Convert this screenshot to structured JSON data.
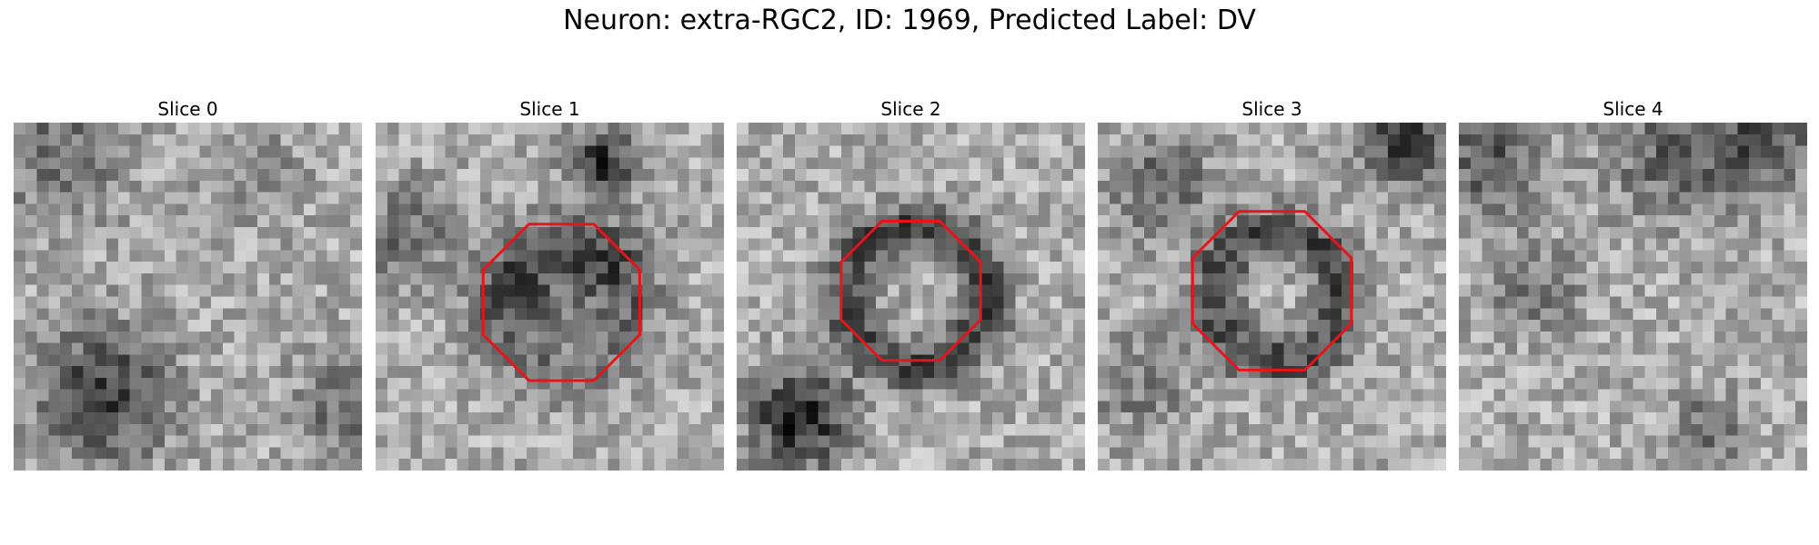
{
  "figure": {
    "title": "Neuron: extra-RGC2, ID: 1969, Predicted Label: DV",
    "roi_color": "#e8141a",
    "colormap": "gray"
  },
  "slices": [
    {
      "title": "Slice 0",
      "roi": null
    },
    {
      "title": "Slice 1",
      "roi": {
        "center": [
          16.0,
          15.5
        ],
        "radius": 7.3
      }
    },
    {
      "title": "Slice 2",
      "roi": {
        "center": [
          15.0,
          14.5
        ],
        "radius": 6.5
      }
    },
    {
      "title": "Slice 3",
      "roi": {
        "center": [
          15.0,
          14.5
        ],
        "radius": 7.4
      }
    },
    {
      "title": "Slice 4",
      "roi": null
    }
  ]
}
